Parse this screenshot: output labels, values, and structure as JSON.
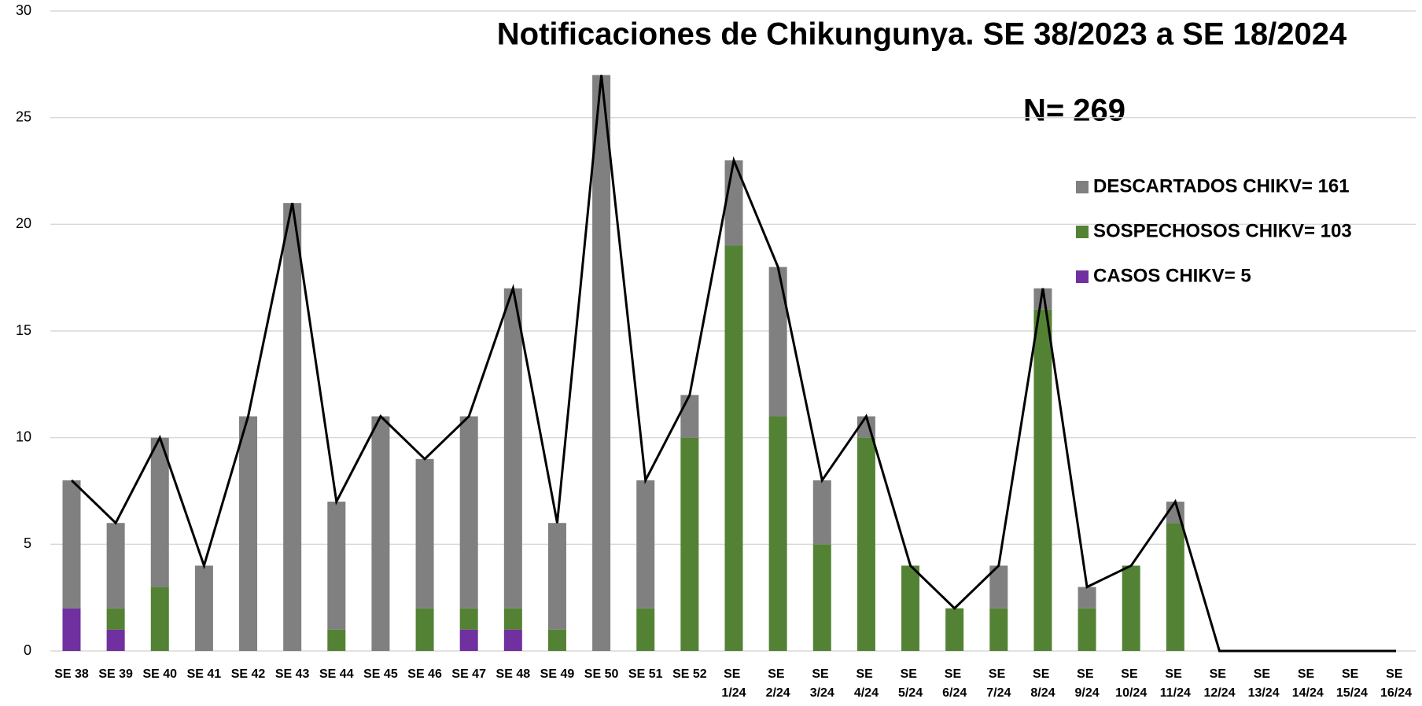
{
  "chart_data": {
    "type": "bar",
    "title": "Notificaciones de Chikungunya. SE 38/2023 a SE  18/2024",
    "annotation": "N= 269",
    "stacked": true,
    "categories": [
      "SE 38",
      "SE 39",
      "SE 40",
      "SE 41",
      "SE 42",
      "SE 43",
      "SE 44",
      "SE 45",
      "SE 46",
      "SE 47",
      "SE 48",
      "SE 49",
      "SE 50",
      "SE 51",
      "SE 52",
      "SE 1/24",
      "SE 2/24",
      "SE 3/24",
      "SE 4/24",
      "SE 5/24",
      "SE 6/24",
      "SE 7/24",
      "SE 8/24",
      "SE 9/24",
      "SE 10/24",
      "SE 11/24",
      "SE 12/24",
      "SE 13/24",
      "SE 14/24",
      "SE 15/24",
      "SE 16/24"
    ],
    "series": [
      {
        "name": "CASOS CHIKV= 5",
        "color": "#7030a0",
        "values": [
          2,
          1,
          0,
          0,
          0,
          0,
          0,
          0,
          0,
          1,
          1,
          0,
          0,
          0,
          0,
          0,
          0,
          0,
          0,
          0,
          0,
          0,
          0,
          0,
          0,
          0,
          0,
          0,
          0,
          0,
          0
        ]
      },
      {
        "name": "SOSPECHOSOS CHIKV= 103",
        "color": "#548235",
        "values": [
          0,
          1,
          3,
          0,
          0,
          0,
          1,
          0,
          2,
          1,
          1,
          1,
          0,
          2,
          10,
          19,
          11,
          5,
          10,
          4,
          2,
          2,
          16,
          2,
          4,
          6,
          0,
          0,
          0,
          0,
          0
        ]
      },
      {
        "name": "DESCARTADOS CHIKV= 161",
        "color": "#808080",
        "values": [
          6,
          4,
          7,
          4,
          11,
          21,
          6,
          11,
          7,
          9,
          15,
          5,
          27,
          6,
          2,
          4,
          7,
          3,
          1,
          0,
          0,
          2,
          1,
          1,
          0,
          1,
          0,
          0,
          0,
          0,
          0
        ]
      }
    ],
    "total": {
      "color": "#000000",
      "values": [
        8,
        6,
        10,
        4,
        11,
        21,
        7,
        11,
        9,
        11,
        17,
        6,
        27,
        8,
        12,
        23,
        18,
        8,
        11,
        4,
        2,
        4,
        17,
        3,
        4,
        7,
        0,
        0,
        0,
        0,
        0
      ]
    },
    "ylim": [
      0,
      30
    ],
    "yticks": [
      0,
      5,
      10,
      15,
      20,
      25,
      30
    ],
    "grid": true,
    "legend": "right"
  }
}
